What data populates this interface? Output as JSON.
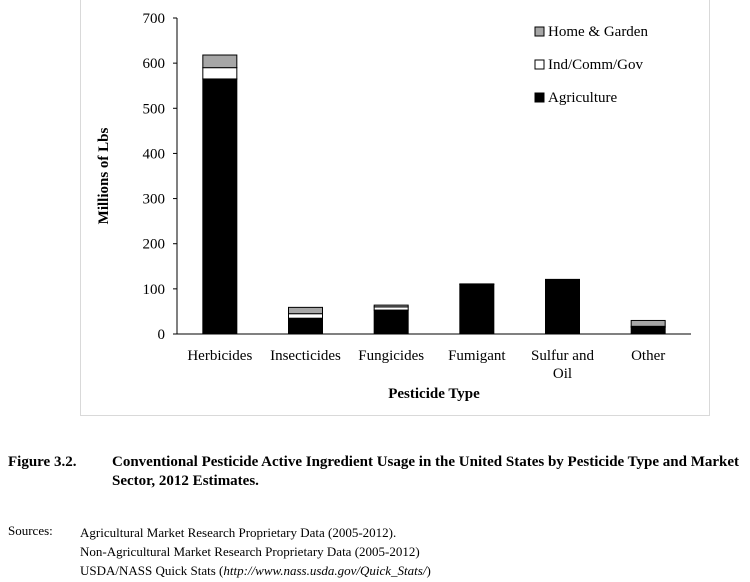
{
  "chart_data": {
    "type": "bar",
    "stacked": true,
    "categories": [
      "Herbicides",
      "Insecticides",
      "Fungicides",
      "Fumigant",
      "Sulfur and Oil",
      "Other"
    ],
    "category_lines": [
      [
        "Herbicides"
      ],
      [
        "Insecticides"
      ],
      [
        "Fungicides"
      ],
      [
        "Fumigant"
      ],
      [
        "Sulfur and",
        "Oil"
      ],
      [
        "Other"
      ]
    ],
    "series": [
      {
        "name": "Agriculture",
        "color": "#000000",
        "values": [
          565,
          35,
          53,
          110,
          121,
          15
        ]
      },
      {
        "name": "Ind/Comm/Gov",
        "color": "#ffffff",
        "values": [
          25,
          10,
          7,
          1,
          0,
          2
        ]
      },
      {
        "name": "Home & Garden",
        "color": "#a6a6a6",
        "values": [
          28,
          14,
          4,
          0,
          0,
          13
        ]
      }
    ],
    "legend_order": [
      "Home & Garden",
      "Ind/Comm/Gov",
      "Agriculture"
    ],
    "legend_position": "top-right",
    "xlabel": "Pesticide Type",
    "ylabel": "Millions of Lbs",
    "ylim": [
      0,
      700
    ],
    "yticks": [
      0,
      100,
      200,
      300,
      400,
      500,
      600,
      700
    ],
    "grid": false
  },
  "caption": {
    "number": "Figure 3.2.",
    "title": "Conventional Pesticide Active Ingredient Usage in the United States by Pesticide Type and Market Sector, 2012 Estimates."
  },
  "sources": {
    "label": "Sources:",
    "line1": "Agricultural Market Research Proprietary Data (2005-2012).",
    "line2": "Non-Agricultural Market Research Proprietary Data (2005-2012)",
    "line3_prefix": "USDA/NASS Quick Stats (",
    "line3_url": "http://www.nass.usda.gov/Quick_Stats/",
    "line3_suffix": ")"
  }
}
